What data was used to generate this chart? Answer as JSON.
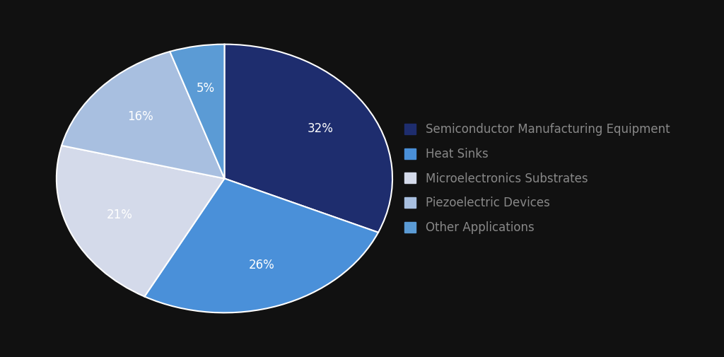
{
  "labels": [
    "Semiconductor Manufacturing Equipment",
    "Heat Sinks",
    "Microelectronics Substrates",
    "Piezoelectric Devices",
    "Other Applications"
  ],
  "values": [
    30,
    25,
    20,
    15,
    5
  ],
  "colors": [
    "#1e2d6e",
    "#4a90d9",
    "#d4daea",
    "#a8bfe0",
    "#5b9bd5"
  ],
  "text_color": "#888888",
  "background_color": "#111111",
  "startangle": 90,
  "legend_fontsize": 12,
  "autopct_fontsize": 12,
  "wedge_linewidth": 1.5,
  "wedge_linecolor": "#ffffff",
  "pctdistance": 0.68
}
